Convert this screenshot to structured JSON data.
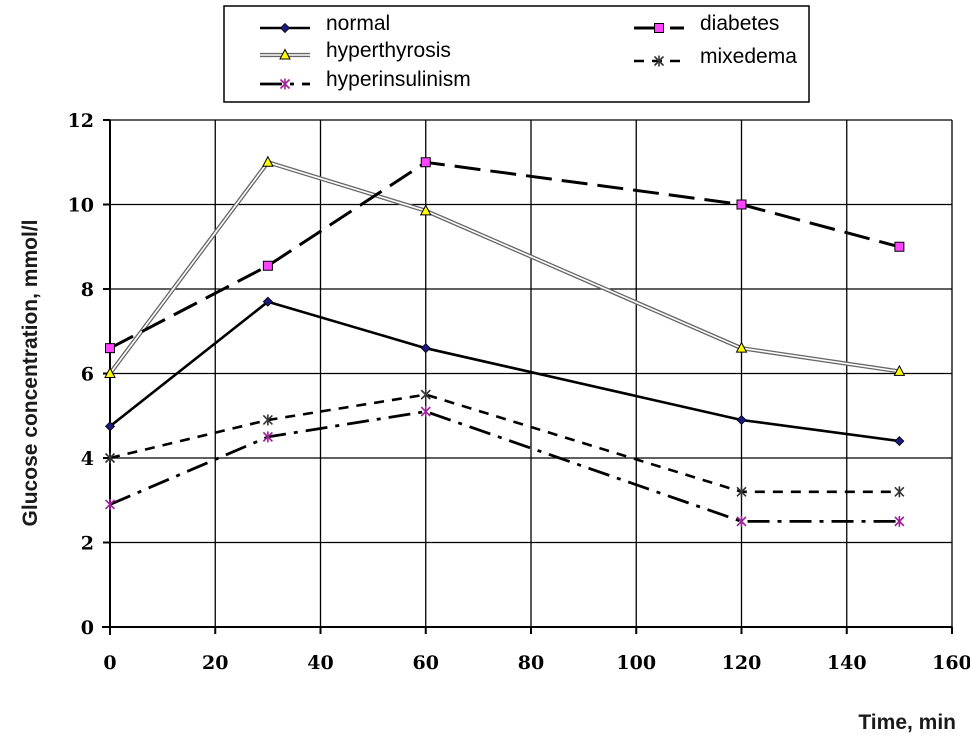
{
  "chart_data": {
    "type": "line",
    "title": "",
    "xlabel": "Time, min",
    "ylabel": "Glucose concentration, mmol/l",
    "xlim": [
      0,
      160
    ],
    "ylim": [
      0,
      12
    ],
    "xticks": [
      0,
      20,
      40,
      60,
      80,
      100,
      120,
      140,
      160
    ],
    "yticks": [
      0,
      2,
      4,
      6,
      8,
      10,
      12
    ],
    "grid": true,
    "legend_position": "top",
    "x": [
      0,
      30,
      60,
      120,
      150
    ],
    "series": [
      {
        "name": "normal",
        "values": [
          4.75,
          7.7,
          6.6,
          4.9,
          4.4
        ],
        "color": "#000000",
        "marker_color": "#1a1a80",
        "marker": "diamond",
        "line_style": "solid"
      },
      {
        "name": "hyperthyrosis",
        "values": [
          6.0,
          11.0,
          9.85,
          6.6,
          6.05
        ],
        "color": "#555555",
        "marker_color": "#ffff00",
        "marker": "triangle",
        "line_style": "double-thin"
      },
      {
        "name": "hyperinsulinism",
        "values": [
          2.9,
          4.5,
          5.1,
          2.5,
          2.5
        ],
        "color": "#000000",
        "marker_color": "#a0209a",
        "marker": "asterisk",
        "line_style": "dash-dot"
      },
      {
        "name": "diabetes",
        "values": [
          6.6,
          8.55,
          11.0,
          10.0,
          9.0
        ],
        "color": "#000000",
        "marker_color": "#ff44ff",
        "marker": "square",
        "line_style": "long-dash"
      },
      {
        "name": "mixedema",
        "values": [
          4.0,
          4.9,
          5.5,
          3.2,
          3.2
        ],
        "color": "#000000",
        "marker_color": "#333333",
        "marker": "star",
        "line_style": "short-dash"
      }
    ]
  }
}
